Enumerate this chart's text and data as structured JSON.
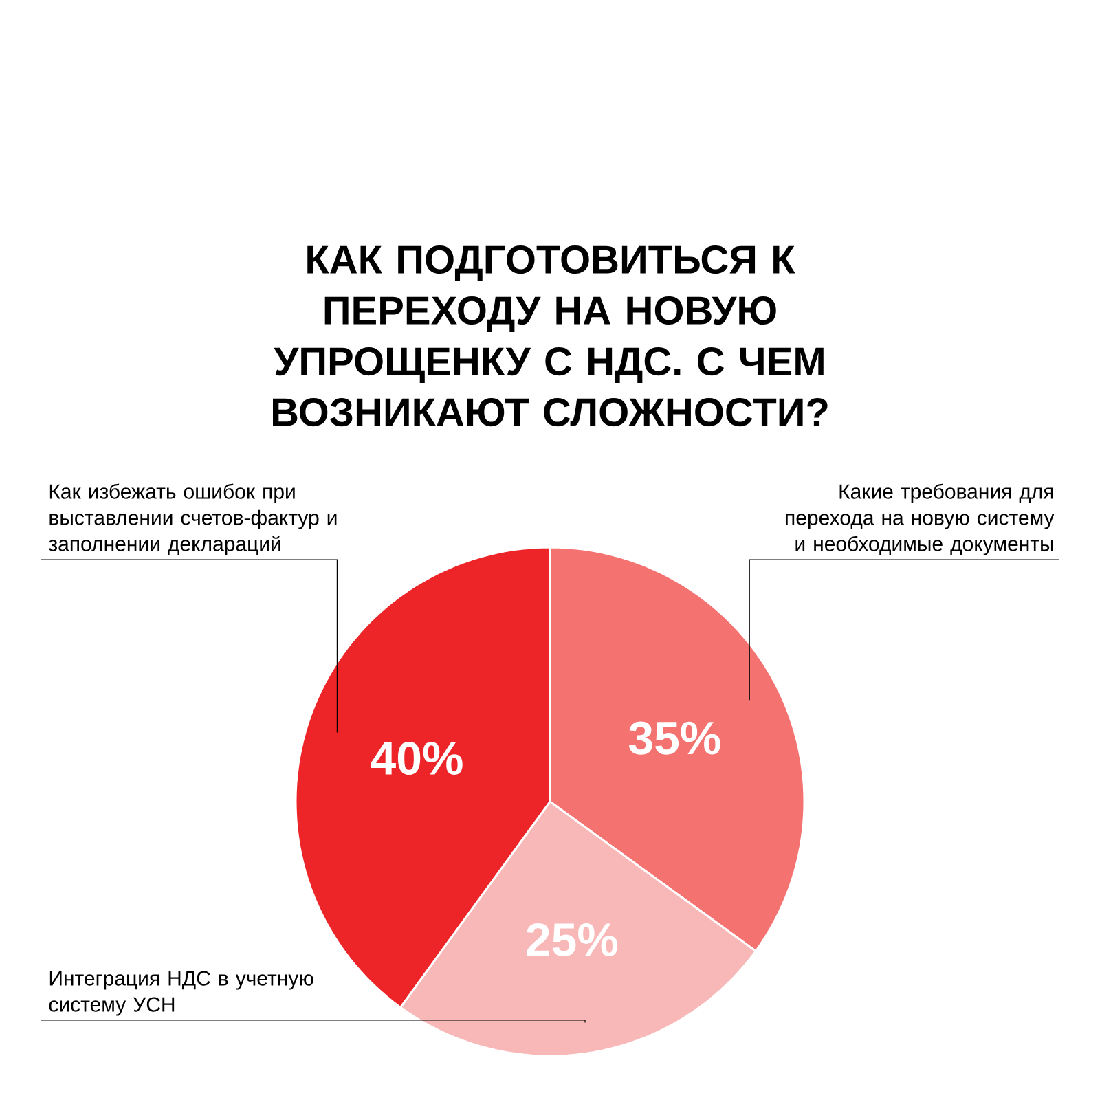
{
  "chart_data": {
    "type": "pie",
    "title": "КАК ПОДГОТОВИТЬСЯ К ПЕРЕХОДУ НА НОВУЮ УПРОЩЕНКУ С НДС. С ЧЕМ ВОЗНИКАЮТ СЛОЖНОСТИ?",
    "categories": [
      "Какие требования для перехода на новую систему и необходимые документы",
      "Интеграция НДС в учетную систему УСН",
      "Как избежать ошибок при выставлении счетов-фактур и заполнении деклараций"
    ],
    "values": [
      35,
      25,
      40
    ],
    "colors": [
      "#f47270",
      "#f9b8b8",
      "#ee2528"
    ],
    "value_labels": [
      "35%",
      "25%",
      "40%"
    ]
  }
}
